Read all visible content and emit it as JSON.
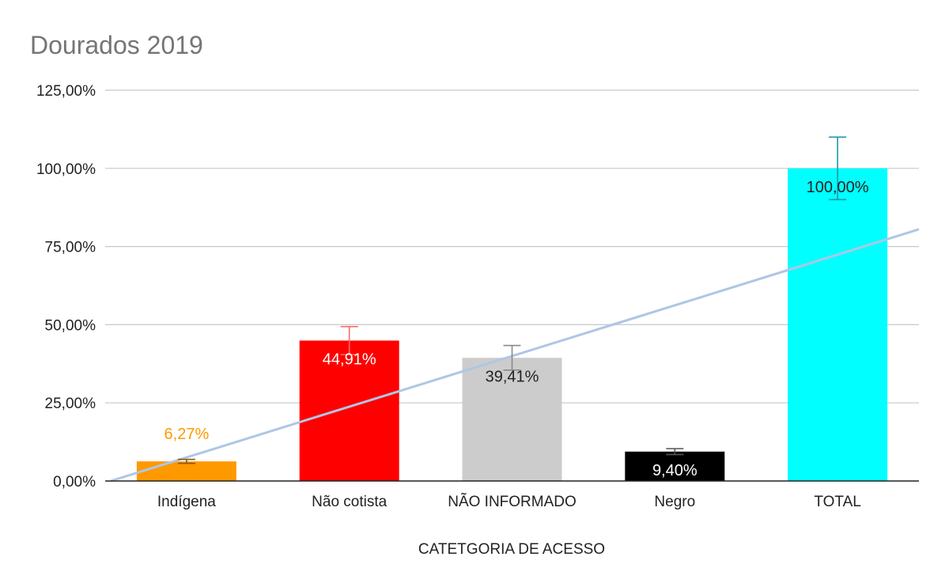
{
  "chart_data": {
    "type": "bar",
    "title": "Dourados 2019",
    "xlabel": "CATETGORIA DE ACESSO",
    "ylabel": "",
    "ylim": [
      0,
      125
    ],
    "yticks": [
      0,
      25,
      50,
      75,
      100,
      125
    ],
    "ytick_labels": [
      "0,00%",
      "25,00%",
      "50,00%",
      "75,00%",
      "100,00%",
      "125,00%"
    ],
    "grid": true,
    "legend": "none",
    "categories": [
      "Indígena",
      "Não cotista",
      "NÃO INFORMADO",
      "Negro",
      "TOTAL"
    ],
    "values": [
      6.27,
      44.91,
      39.41,
      9.4,
      100.0
    ],
    "data_labels": [
      "6,27%",
      "44,91%",
      "39,41%",
      "9,40%",
      "100,00%"
    ],
    "bar_colors": [
      "#ff9900",
      "#ff0000",
      "#cccccc",
      "#000000",
      "#00ffff"
    ],
    "label_colors": [
      "#ff9900",
      "#ffffff",
      "#222222",
      "#ffffff",
      "#222222"
    ],
    "error_bars": [
      0.63,
      4.49,
      3.94,
      0.94,
      10.0
    ],
    "error_bar_colors": [
      "#8a5a14",
      "#ff6b6b",
      "#8a8a8a",
      "#555555",
      "#1a9aa5"
    ],
    "trendline": {
      "type": "linear",
      "color": "#aec6e6",
      "y_at_origin": 0.0,
      "y_at_end": 80.5
    }
  }
}
